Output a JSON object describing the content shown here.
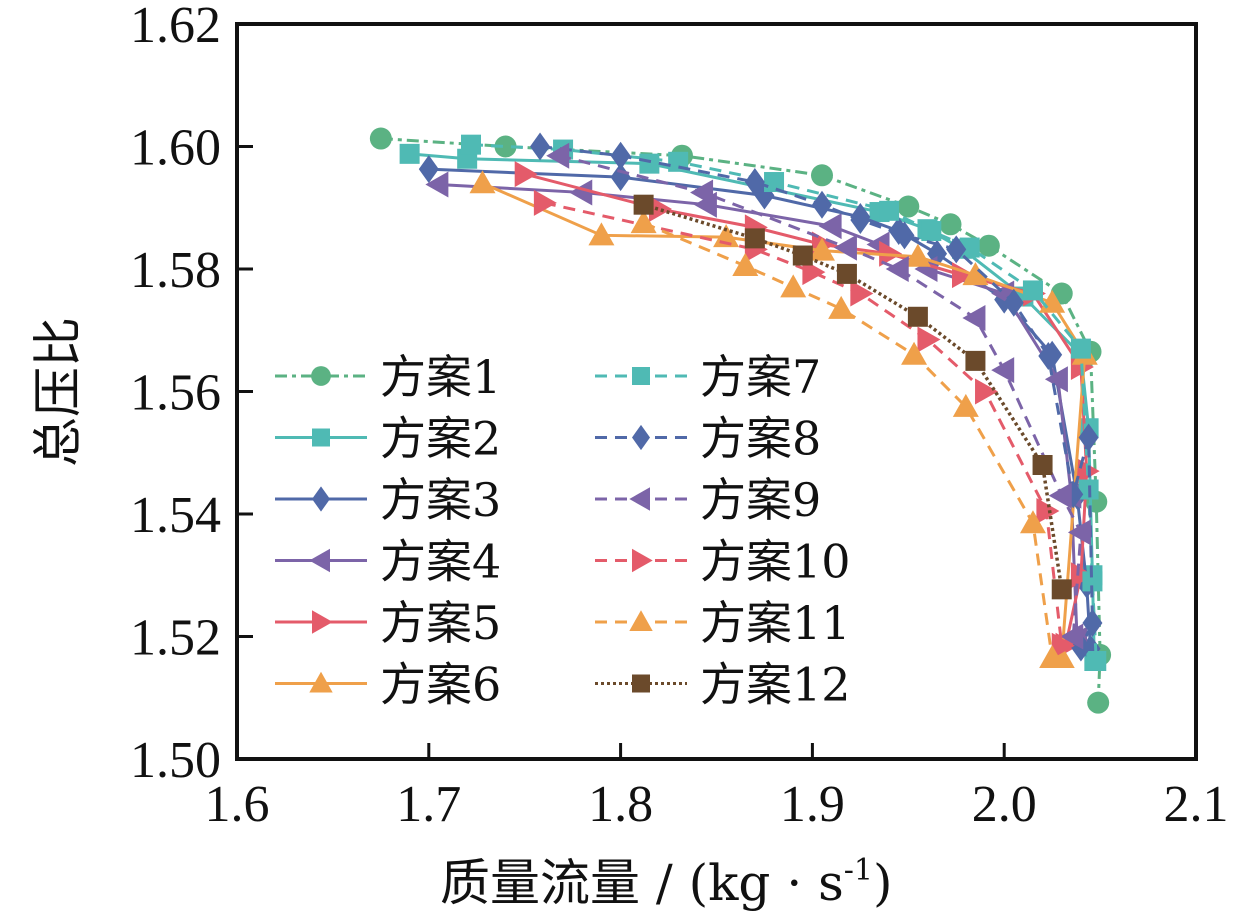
{
  "chart_data": {
    "type": "line",
    "title": "",
    "xlabel": "质量流量 / (kg · s",
    "xlabel_sup": "-1",
    "xlabel_close": ")",
    "ylabel": "总压比",
    "xlim": [
      1.6,
      2.1
    ],
    "ylim": [
      1.5,
      1.62
    ],
    "xticks": [
      1.6,
      1.7,
      1.8,
      1.9,
      2.0,
      2.1
    ],
    "xtick_labels": [
      "1.6",
      "1.7",
      "1.8",
      "1.9",
      "2.0",
      "2.1"
    ],
    "yticks": [
      1.5,
      1.52,
      1.54,
      1.56,
      1.58,
      1.6,
      1.62
    ],
    "ytick_labels": [
      "1.50",
      "1.52",
      "1.54",
      "1.56",
      "1.58",
      "1.60",
      "1.62"
    ],
    "grid": false,
    "legend_placement": "center-left",
    "series": [
      {
        "name": "方案1",
        "color": "#5bb283",
        "marker": "circle",
        "linestyle": "dashdot",
        "x": [
          1.675,
          1.74,
          1.832,
          1.905,
          1.95,
          1.972,
          1.992,
          2.03,
          2.045,
          2.048,
          2.05,
          2.049
        ],
        "y": [
          1.6013,
          1.6,
          1.5985,
          1.5953,
          1.5902,
          1.5873,
          1.5838,
          1.576,
          1.5665,
          1.542,
          1.517,
          1.5092
        ]
      },
      {
        "name": "方案2",
        "color": "#4fbab4",
        "marker": "square",
        "linestyle": "solid",
        "x": [
          1.69,
          1.72,
          1.815,
          1.935,
          1.96,
          1.978,
          2.01,
          2.04,
          2.044,
          2.046,
          2.047
        ],
        "y": [
          1.5988,
          1.598,
          1.5972,
          1.5893,
          1.5865,
          1.5833,
          1.5755,
          1.566,
          1.554,
          1.53,
          1.516
        ]
      },
      {
        "name": "方案3",
        "color": "#5069a8",
        "marker": "diamond",
        "linestyle": "solid",
        "x": [
          1.7,
          1.8,
          1.875,
          1.925,
          1.945,
          1.965,
          2.0,
          2.025,
          2.038,
          2.043,
          2.045
        ],
        "y": [
          1.5963,
          1.595,
          1.592,
          1.5885,
          1.5862,
          1.5825,
          1.575,
          1.566,
          1.543,
          1.5285,
          1.518
        ]
      },
      {
        "name": "方案4",
        "color": "#7c64a8",
        "marker": "triangle-left",
        "linestyle": "solid",
        "x": [
          1.705,
          1.78,
          1.845,
          1.91,
          1.935,
          1.96,
          2.0,
          2.028,
          2.035,
          2.038
        ],
        "y": [
          1.5938,
          1.5925,
          1.5905,
          1.587,
          1.584,
          1.58,
          1.576,
          1.562,
          1.543,
          1.5195
        ]
      },
      {
        "name": "方案5",
        "color": "#e45b6a",
        "marker": "triangle-right",
        "linestyle": "solid",
        "x": [
          1.75,
          1.82,
          1.87,
          1.905,
          1.94,
          1.978,
          2.015,
          2.04,
          2.043,
          2.04,
          2.032
        ],
        "y": [
          1.5955,
          1.5898,
          1.5868,
          1.584,
          1.5825,
          1.579,
          1.576,
          1.564,
          1.547,
          1.53,
          1.5185
        ]
      },
      {
        "name": "方案6",
        "color": "#efa04a",
        "marker": "triangle-up",
        "linestyle": "solid",
        "x": [
          1.728,
          1.79,
          1.855,
          1.905,
          1.955,
          1.985,
          2.025,
          2.042,
          2.03
        ],
        "y": [
          1.594,
          1.5855,
          1.5852,
          1.583,
          1.582,
          1.579,
          1.5745,
          1.566,
          1.5165
        ]
      },
      {
        "name": "方案7",
        "color": "#4fbab4",
        "marker": "square",
        "linestyle": "dashed",
        "x": [
          1.722,
          1.77,
          1.83,
          1.88,
          1.94,
          1.962,
          1.982,
          2.015,
          2.04,
          2.044,
          2.046,
          2.048
        ],
        "y": [
          1.6003,
          1.5995,
          1.5975,
          1.5942,
          1.5895,
          1.5862,
          1.5835,
          1.5765,
          1.567,
          1.544,
          1.529,
          1.516
        ]
      },
      {
        "name": "方案8",
        "color": "#5069a8",
        "marker": "diamond",
        "linestyle": "dashed",
        "x": [
          1.758,
          1.8,
          1.87,
          1.905,
          1.925,
          1.948,
          1.975,
          2.005,
          2.023,
          2.036,
          2.044,
          2.046,
          2.04
        ],
        "y": [
          1.6,
          1.5985,
          1.5942,
          1.5905,
          1.588,
          1.5855,
          1.5832,
          1.5745,
          1.5658,
          1.5432,
          1.5525,
          1.5222,
          1.5182
        ]
      },
      {
        "name": "方案9",
        "color": "#7c64a8",
        "marker": "triangle-left",
        "linestyle": "dashed",
        "x": [
          1.768,
          1.843,
          1.918,
          1.945,
          1.985,
          2.0,
          2.03,
          2.04,
          2.036
        ],
        "y": [
          1.5985,
          1.5925,
          1.5835,
          1.58,
          1.572,
          1.5635,
          1.543,
          1.537,
          1.52
        ]
      },
      {
        "name": "方案10",
        "color": "#e45b6a",
        "marker": "triangle-right",
        "linestyle": "dashed",
        "x": [
          1.76,
          1.87,
          1.9,
          1.925,
          1.96,
          1.99,
          2.022,
          2.03
        ],
        "y": [
          1.5908,
          1.5832,
          1.5795,
          1.576,
          1.5685,
          1.56,
          1.5405,
          1.5185
        ]
      },
      {
        "name": "方案11",
        "color": "#efa04a",
        "marker": "triangle-up",
        "linestyle": "dashed",
        "x": [
          1.812,
          1.865,
          1.89,
          1.915,
          1.953,
          1.98,
          2.015,
          2.025
        ],
        "y": [
          1.5875,
          1.5805,
          1.577,
          1.5735,
          1.566,
          1.5575,
          1.5385,
          1.5165
        ]
      },
      {
        "name": "方案12",
        "color": "#6b4a2b",
        "marker": "square",
        "linestyle": "dotted",
        "x": [
          1.812,
          1.87,
          1.895,
          1.918,
          1.955,
          1.985,
          2.02,
          2.03
        ],
        "y": [
          1.5905,
          1.585,
          1.5822,
          1.5792,
          1.5722,
          1.565,
          1.548,
          1.5277
        ]
      }
    ]
  }
}
